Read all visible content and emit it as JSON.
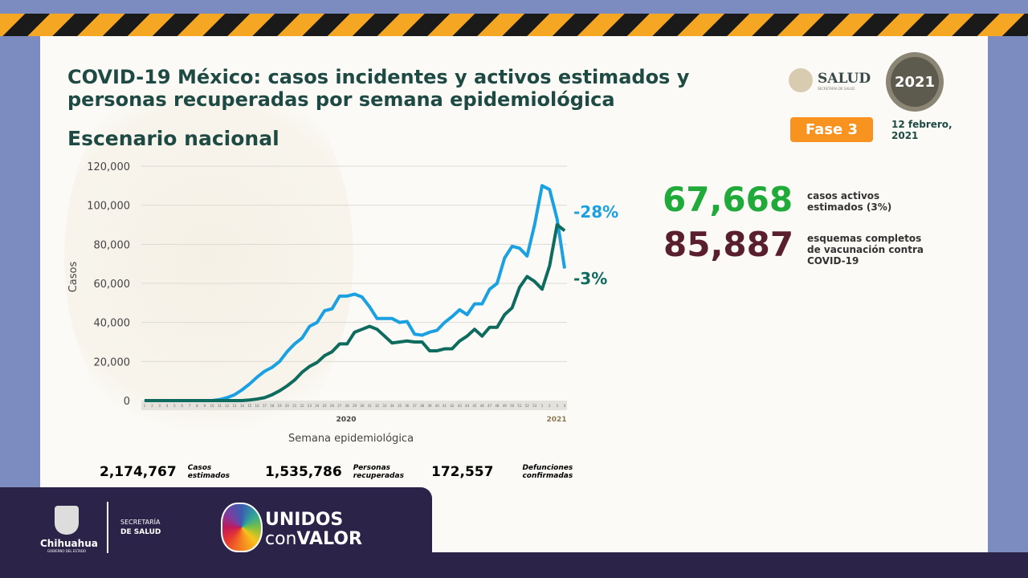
{
  "header": {
    "title": "COVID-19 México: casos incidentes y activos estimados y personas recuperadas por semana epidemiológica",
    "subtitle": "Escenario nacional",
    "salud_logo": "SALUD",
    "salud_sub": "SECRETARÍA DE SALUD",
    "logo_2021": "2021",
    "phase": "Fase 3",
    "date": "12 febrero, 2021"
  },
  "kpis": [
    {
      "value": "67,668",
      "label": "casos activos estimados (3%)",
      "color": "#1faa3a"
    },
    {
      "value": "85,887",
      "label": "esquemas completos de vacunación contra COVID-19",
      "color": "#5a1f2e"
    }
  ],
  "chart_data": {
    "type": "line",
    "xlabel": "Semana epidemiológica",
    "ylabel": "Casos",
    "ylim": [
      0,
      120000
    ],
    "yticks": [
      "0",
      "20,000",
      "40,000",
      "60,000",
      "80,000",
      "100,000",
      "120,000"
    ],
    "grid": true,
    "year_labels": [
      "2020",
      "2021"
    ],
    "x": [
      "1",
      "2",
      "3",
      "4",
      "5",
      "6",
      "7",
      "8",
      "9",
      "10",
      "11",
      "12",
      "13",
      "14",
      "15",
      "16",
      "17",
      "18",
      "19",
      "20",
      "21",
      "22",
      "23",
      "24",
      "25",
      "26",
      "27",
      "28",
      "29",
      "30",
      "31",
      "32",
      "33",
      "34",
      "35",
      "36",
      "37",
      "38",
      "39",
      "40",
      "41",
      "42",
      "43",
      "44",
      "45",
      "46",
      "47",
      "48",
      "49",
      "50",
      "51",
      "52",
      "53",
      "1",
      "2",
      "3",
      "4"
    ],
    "series": [
      {
        "color": "#1ba1e2",
        "end_label": "-28%",
        "values": [
          0,
          0,
          0,
          0,
          0,
          0,
          0,
          0,
          0,
          0,
          500,
          1500,
          3000,
          5500,
          8500,
          12000,
          15000,
          17000,
          20000,
          25000,
          29000,
          32000,
          38000,
          40000,
          46000,
          47000,
          53500,
          53500,
          54500,
          53000,
          48000,
          42000,
          42000,
          42000,
          40000,
          40500,
          34000,
          33500,
          35000,
          36000,
          40000,
          43000,
          46500,
          44000,
          49500,
          49500,
          57000,
          60000,
          73000,
          79000,
          78000,
          74000,
          90000,
          110000,
          108000,
          93000,
          67668
        ]
      },
      {
        "color": "#0f6b5e",
        "end_label": "-3%",
        "values": [
          0,
          0,
          0,
          0,
          0,
          0,
          0,
          0,
          0,
          0,
          0,
          0,
          0,
          0,
          300,
          800,
          1500,
          3000,
          5000,
          7500,
          10500,
          14500,
          17500,
          19500,
          23000,
          25000,
          29000,
          29000,
          35000,
          36500,
          38000,
          36500,
          33000,
          29500,
          30000,
          30500,
          30000,
          30000,
          25500,
          25500,
          26500,
          26500,
          30500,
          33000,
          36500,
          33000,
          37500,
          37500,
          44000,
          47500,
          58000,
          63500,
          61000,
          57000,
          69000,
          90000,
          87000
        ]
      }
    ]
  },
  "stats": [
    {
      "value": "2,174,767",
      "label": "Casos estimados",
      "color": "#1ba1e2",
      "bg": "#d6eef8"
    },
    {
      "value": "1,535,786",
      "label": "Personas recuperadas",
      "color": "#0f6b5e",
      "bg": "#cfe6df"
    },
    {
      "value": "172,557",
      "label": "Defunciones confirmadas",
      "color": "#8a86d8",
      "bg": "#e6e6f7"
    }
  ],
  "footer": {
    "state": "Chihuahua",
    "state_sub": "GOBIERNO DEL ESTADO",
    "sec_line1": "SECRETARÍA",
    "sec_line2": "DE SALUD",
    "campaign_line1": "UNIDOS",
    "campaign_con": "con",
    "campaign_valor": "VALOR"
  }
}
